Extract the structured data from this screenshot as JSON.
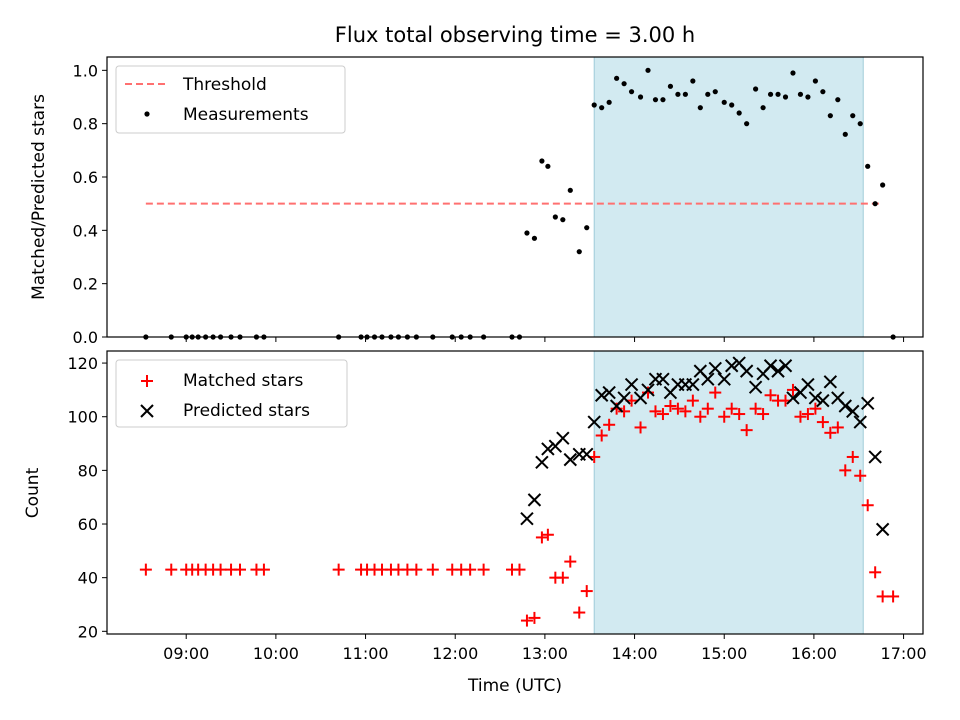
{
  "chart_data": {
    "type": "scatter",
    "title": "Flux total observing time = 3.00 h",
    "xlabel": "Time (UTC)",
    "x_ticks": [
      "09:00",
      "10:00",
      "11:00",
      "12:00",
      "13:00",
      "14:00",
      "15:00",
      "16:00",
      "17:00"
    ],
    "xlim": [
      "08:07",
      "17:13"
    ],
    "highlight_span": {
      "start": "13:33",
      "end": "16:33",
      "color": "#add8e6"
    },
    "panels": [
      {
        "id": "top",
        "ylabel": "Matched/Predicted stars",
        "ylim": [
          0,
          1.05
        ],
        "y_ticks": [
          "0.0",
          "0.2",
          "0.4",
          "0.6",
          "0.8",
          "1.0"
        ],
        "legend_position": "upper left",
        "series": [
          {
            "name": "Threshold",
            "kind": "line",
            "color": "#ff7070",
            "x": [
              "08:33",
              "16:46"
            ],
            "y": [
              0.5,
              0.5
            ]
          },
          {
            "name": "Measurements",
            "kind": "scatter",
            "marker": "dot",
            "color": "#000000",
            "x": [
              "08:33",
              "08:50",
              "09:00",
              "09:04",
              "09:08",
              "09:13",
              "09:18",
              "09:23",
              "09:30",
              "09:36",
              "09:47",
              "09:52",
              "10:42",
              "10:57",
              "11:01",
              "11:06",
              "11:11",
              "11:17",
              "11:22",
              "11:28",
              "11:34",
              "11:45",
              "11:58",
              "12:04",
              "12:10",
              "12:19",
              "12:38",
              "12:43",
              "12:48",
              "12:53",
              "12:58",
              "13:02",
              "13:07",
              "13:12",
              "13:17",
              "13:23",
              "13:28",
              "13:33",
              "13:38",
              "13:43",
              "13:48",
              "13:53",
              "13:58",
              "14:04",
              "14:09",
              "14:14",
              "14:19",
              "14:24",
              "14:29",
              "14:34",
              "14:39",
              "14:44",
              "14:49",
              "14:54",
              "15:00",
              "15:05",
              "15:10",
              "15:15",
              "15:21",
              "15:26",
              "15:31",
              "15:36",
              "15:41",
              "15:46",
              "15:51",
              "15:56",
              "16:01",
              "16:06",
              "16:11",
              "16:16",
              "16:21",
              "16:26",
              "16:31",
              "16:36",
              "16:41",
              "16:46",
              "16:53"
            ],
            "y": [
              0,
              0,
              0,
              0,
              0,
              0,
              0,
              0,
              0,
              0,
              0,
              0,
              0,
              0,
              0,
              0,
              0,
              0,
              0,
              0,
              0,
              0,
              0,
              0,
              0,
              0,
              0,
              0,
              0.39,
              0.37,
              0.66,
              0.64,
              0.45,
              0.44,
              0.55,
              0.32,
              0.41,
              0.87,
              0.86,
              0.88,
              0.97,
              0.95,
              0.92,
              0.9,
              1.0,
              0.89,
              0.89,
              0.94,
              0.91,
              0.91,
              0.96,
              0.86,
              0.91,
              0.92,
              0.88,
              0.87,
              0.84,
              0.8,
              0.93,
              0.86,
              0.91,
              0.91,
              0.9,
              0.99,
              0.91,
              0.9,
              0.96,
              0.92,
              0.83,
              0.89,
              0.76,
              0.83,
              0.8,
              0.64,
              0.5,
              0.57,
              0
            ]
          }
        ]
      },
      {
        "id": "bottom",
        "ylabel": "Count",
        "ylim": [
          19,
          124.5
        ],
        "y_ticks": [
          "20",
          "40",
          "60",
          "80",
          "100",
          "120"
        ],
        "legend_position": "upper left",
        "series": [
          {
            "name": "Matched stars",
            "kind": "scatter",
            "marker": "plus",
            "color": "#ff0000",
            "x": [
              "08:33",
              "08:50",
              "09:00",
              "09:04",
              "09:08",
              "09:13",
              "09:18",
              "09:23",
              "09:30",
              "09:36",
              "09:47",
              "09:52",
              "10:42",
              "10:57",
              "11:01",
              "11:06",
              "11:11",
              "11:17",
              "11:22",
              "11:28",
              "11:34",
              "11:45",
              "11:58",
              "12:04",
              "12:10",
              "12:19",
              "12:38",
              "12:43",
              "12:48",
              "12:53",
              "12:58",
              "13:02",
              "13:07",
              "13:12",
              "13:17",
              "13:23",
              "13:28",
              "13:33",
              "13:38",
              "13:43",
              "13:48",
              "13:53",
              "13:58",
              "14:04",
              "14:09",
              "14:14",
              "14:19",
              "14:24",
              "14:29",
              "14:34",
              "14:39",
              "14:44",
              "14:49",
              "14:54",
              "15:00",
              "15:05",
              "15:10",
              "15:15",
              "15:21",
              "15:26",
              "15:31",
              "15:36",
              "15:41",
              "15:46",
              "15:51",
              "15:56",
              "16:01",
              "16:06",
              "16:11",
              "16:16",
              "16:21",
              "16:26",
              "16:31",
              "16:36",
              "16:41",
              "16:46",
              "16:53"
            ],
            "y": [
              43,
              43,
              43,
              43,
              43,
              43,
              43,
              43,
              43,
              43,
              43,
              43,
              43,
              43,
              43,
              43,
              43,
              43,
              43,
              43,
              43,
              43,
              43,
              43,
              43,
              43,
              43,
              43,
              24,
              25,
              55,
              56,
              40,
              40,
              46,
              27,
              35,
              85,
              93,
              97,
              103,
              102,
              106,
              96,
              109,
              102,
              101,
              104,
              103,
              102,
              106,
              100,
              103,
              109,
              100,
              103,
              101,
              95,
              103,
              101,
              108,
              106,
              106,
              110,
              100,
              101,
              103,
              98,
              94,
              96,
              80,
              85,
              78,
              67,
              42,
              33,
              33
            ]
          },
          {
            "name": "Predicted stars",
            "kind": "scatter",
            "marker": "x",
            "color": "#000000",
            "x": [
              "12:48",
              "12:53",
              "12:58",
              "13:02",
              "13:07",
              "13:12",
              "13:17",
              "13:23",
              "13:28",
              "13:33",
              "13:38",
              "13:43",
              "13:48",
              "13:53",
              "13:58",
              "14:04",
              "14:09",
              "14:14",
              "14:19",
              "14:24",
              "14:29",
              "14:34",
              "14:39",
              "14:44",
              "14:49",
              "14:54",
              "15:00",
              "15:05",
              "15:10",
              "15:15",
              "15:21",
              "15:26",
              "15:31",
              "15:36",
              "15:41",
              "15:46",
              "15:51",
              "15:56",
              "16:01",
              "16:06",
              "16:11",
              "16:16",
              "16:21",
              "16:26",
              "16:31",
              "16:36",
              "16:41",
              "16:46"
            ],
            "y": [
              62,
              69,
              83,
              88,
              89,
              92,
              84,
              86,
              86,
              98,
              108,
              109,
              104,
              107,
              112,
              107,
              110,
              114,
              114,
              109,
              112,
              112,
              112,
              117,
              114,
              118,
              114,
              119,
              120,
              117,
              111,
              116,
              119,
              117,
              119,
              107,
              109,
              112,
              107,
              106,
              113,
              107,
              104,
              102,
              98,
              105,
              85,
              58
            ]
          }
        ]
      }
    ]
  }
}
